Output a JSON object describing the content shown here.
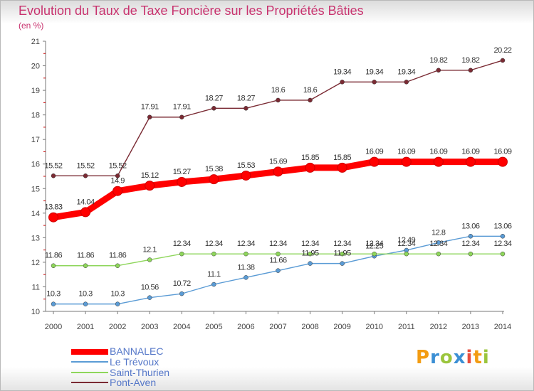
{
  "title": "Evolution du Taux de Taxe Foncière sur les Propriétés Bâties",
  "unit": "(en %)",
  "chart_data": {
    "type": "line",
    "title": "Evolution du Taux de Taxe Foncière sur les Propriétés Bâties",
    "ylabel": "(en %)",
    "xlabel": "",
    "x": [
      "2000",
      "2001",
      "2002",
      "2003",
      "2004",
      "2005",
      "2006",
      "2007",
      "2008",
      "2009",
      "2010",
      "2011",
      "2012",
      "2013",
      "2014"
    ],
    "ylim": [
      10,
      21
    ],
    "yticks": [
      10,
      11,
      12,
      13,
      14,
      15,
      16,
      17,
      18,
      19,
      20,
      21
    ],
    "grid": false,
    "legend": "bottom-left",
    "series": [
      {
        "name": "BANNALEC",
        "color": "#ff0000",
        "values": [
          13.83,
          14.04,
          14.9,
          15.12,
          15.27,
          15.38,
          15.53,
          15.69,
          15.85,
          15.85,
          16.09,
          16.09,
          16.09,
          16.09,
          16.09
        ],
        "labels": [
          "13.83",
          "14.04",
          "14.9",
          "15.12",
          "15.27",
          "15.38",
          "15.53",
          "15.69",
          "15.85",
          "15.85",
          "16.09",
          "16.09",
          "16.09",
          "16.09",
          "16.09"
        ]
      },
      {
        "name": "Le Trévoux",
        "color": "#5a9bd5",
        "values": [
          10.3,
          10.3,
          10.3,
          10.56,
          10.72,
          11.1,
          11.38,
          11.66,
          11.95,
          11.95,
          12.25,
          12.49,
          12.8,
          13.06,
          13.06
        ],
        "labels": [
          "10.3",
          "10.3",
          "10.3",
          "10.56",
          "10.72",
          "11.1",
          "11.38",
          "11.66",
          "11.95",
          "11.95",
          "12.25",
          "12.49",
          "12.8",
          "13.06",
          "13.06"
        ]
      },
      {
        "name": "Saint-Thurien",
        "color": "#8ed65b",
        "values": [
          11.86,
          11.86,
          11.86,
          12.1,
          12.34,
          12.34,
          12.34,
          12.34,
          12.34,
          12.34,
          12.34,
          12.34,
          12.34,
          12.34,
          12.34
        ],
        "labels": [
          "11.86",
          "11.86",
          "11.86",
          "12.1",
          "12.34",
          "12.34",
          "12.34",
          "12.34",
          "12.34",
          "12.34",
          "12.34",
          "12.34",
          "12.34",
          "12.34",
          "12.34"
        ]
      },
      {
        "name": "Pont-Aven",
        "color": "#7a2a33",
        "values": [
          15.52,
          15.52,
          15.52,
          17.91,
          17.91,
          18.27,
          18.27,
          18.6,
          18.6,
          19.34,
          19.34,
          19.34,
          19.82,
          19.82,
          20.22
        ],
        "labels": [
          "15.52",
          "15.52",
          "15.52",
          "17.91",
          "17.91",
          "18.27",
          "18.27",
          "18.6",
          "18.6",
          "19.34",
          "19.34",
          "19.34",
          "19.82",
          "19.82",
          "20.22"
        ]
      }
    ]
  },
  "legend_items": [
    {
      "label": "BANNALEC",
      "color": "#ff0000"
    },
    {
      "label": "Le Trévoux",
      "color": "#5a9bd5"
    },
    {
      "label": "Saint-Thurien",
      "color": "#8ed65b"
    },
    {
      "label": "Pont-Aven",
      "color": "#7a2a33"
    }
  ],
  "logo": {
    "letters": [
      "P",
      "r",
      "o",
      "x",
      "i",
      "t",
      "i"
    ],
    "colors": [
      "#f39c12",
      "#3b8fd4",
      "#9bc53d",
      "#3b8fd4",
      "#e74c3c",
      "#f39c12",
      "#9bc53d"
    ]
  }
}
